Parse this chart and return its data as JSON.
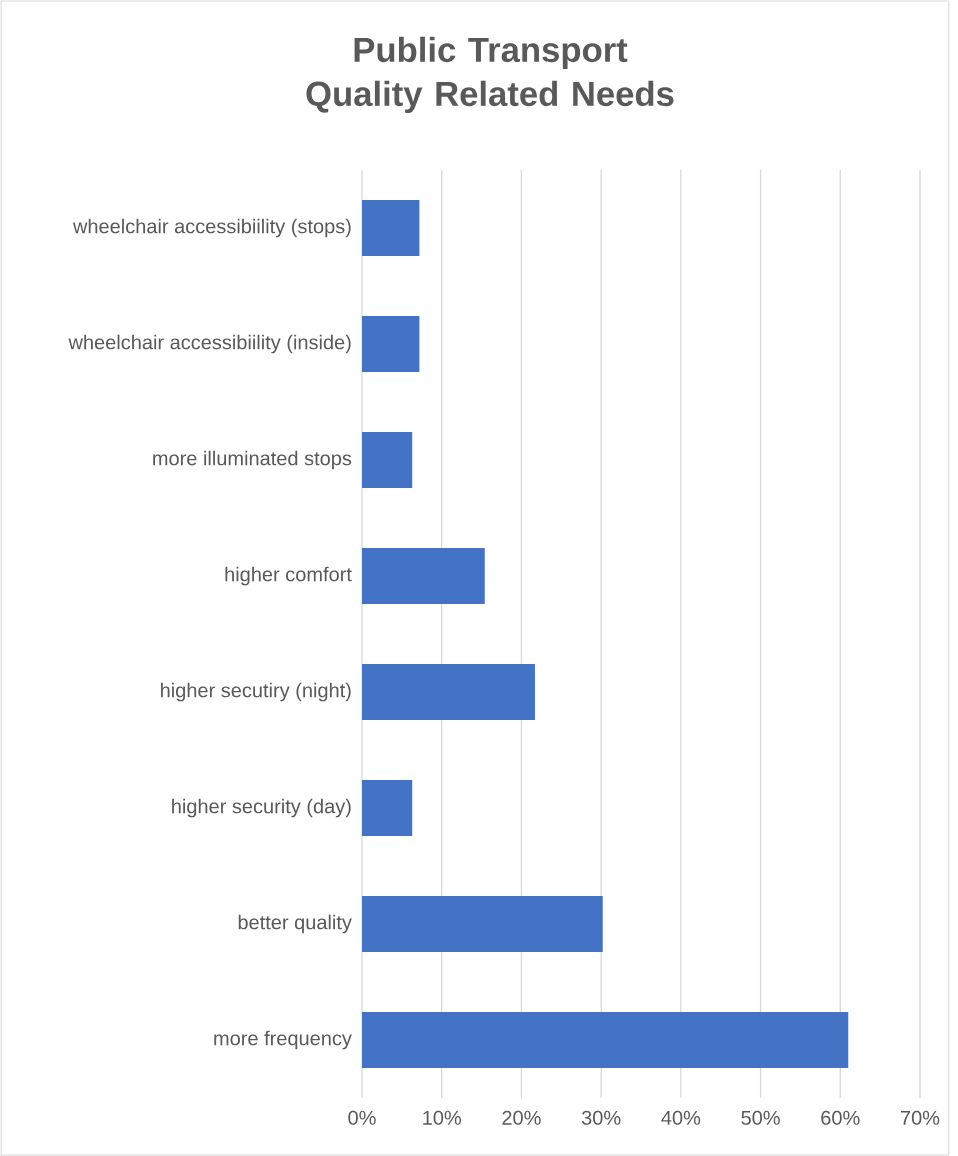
{
  "chart_data": {
    "type": "bar",
    "orientation": "horizontal",
    "title": "Public Transport\nQuality Related Needs",
    "categories": [
      "wheelchair accessibiility (stops)",
      "wheelchair accessibiility (inside)",
      "more illuminated stops",
      "higher comfort",
      "higher secutiry (night)",
      "higher security (day)",
      "better quality",
      "more frequency"
    ],
    "values": [
      7.2,
      7.2,
      6.3,
      15.4,
      21.7,
      6.3,
      30.2,
      61.0
    ],
    "color": "#4472c4",
    "xlim": [
      0,
      70
    ],
    "xticks": [
      {
        "value": 0,
        "label": "0%"
      },
      {
        "value": 10,
        "label": "10%"
      },
      {
        "value": 20,
        "label": "20%"
      },
      {
        "value": 30,
        "label": "30%"
      },
      {
        "value": 40,
        "label": "40%"
      },
      {
        "value": 50,
        "label": "50%"
      },
      {
        "value": 60,
        "label": "60%"
      },
      {
        "value": 70,
        "label": "70%"
      }
    ],
    "grid": "x"
  }
}
